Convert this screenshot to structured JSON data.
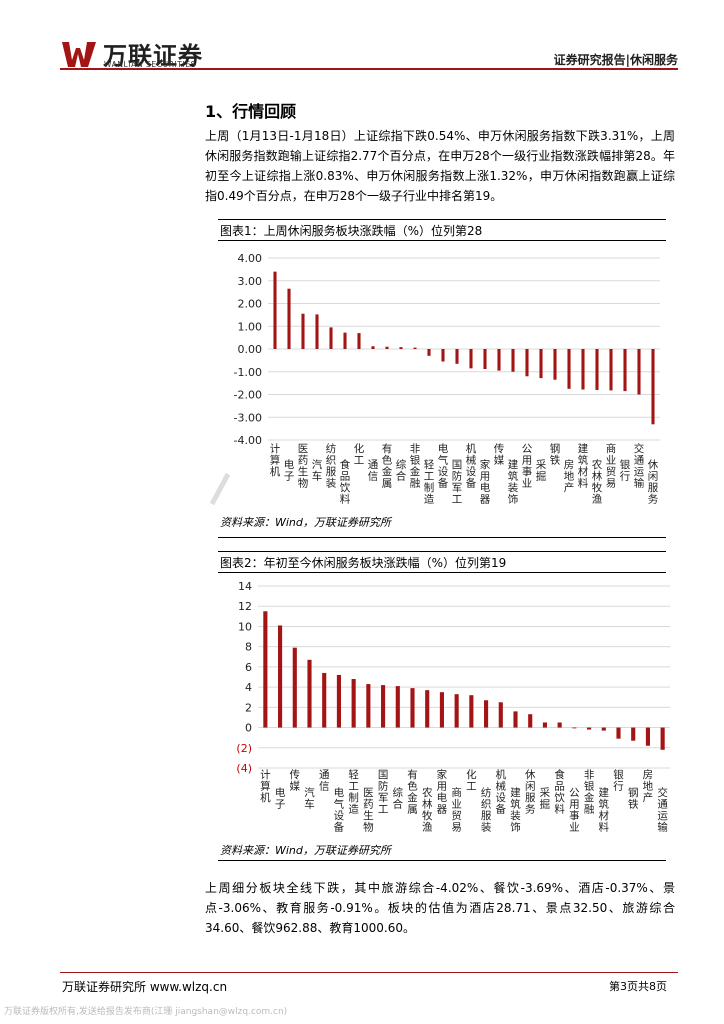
{
  "header": {
    "brand_cn": "万联证券",
    "brand_en": "WANLIAN SECURITIES",
    "tag": "证券研究报告|休闲服务",
    "logo_icon": "wanlian-w-logo-icon",
    "accent": "#a31515"
  },
  "section_title": "1、行情回顾",
  "paragraphs": [
    "上周（1月13日-1月18日）上证综指下跌0.54%、申万休闲服务指数下跌3.31%，上周休闲服务指数跑输上证综指2.77个百分点，在申万28个一级行业指数涨跌幅排第28。年初至今上证综指上涨0.83%、申万休闲服务指数上涨1.32%，申万休闲指数跑赢上证综指0.49个百分点，在申万28个一级子行业中排名第19。",
    "上周细分板块全线下跌，其中旅游综合-4.02%、餐饮-3.69%、酒店-0.37%、景点-3.06%、教育服务-0.91%。板块的估值为酒店28.71、景点32.50、旅游综合34.60、餐饮962.88、教育1000.60。"
  ],
  "figures": [
    {
      "title": "图表1：上周休闲服务板块涨跌幅（%）位列第28",
      "source": "资料来源：Wind，万联证券研究所"
    },
    {
      "title": "图表2：年初至今休闲服务板块涨跌幅（%）位列第19",
      "source": "资料来源：Wind，万联证券研究所"
    }
  ],
  "chart_data": [
    {
      "type": "bar",
      "color": "#a31515",
      "ylim": [
        -4,
        4
      ],
      "yticks": [
        4,
        3,
        2,
        1,
        0,
        -1,
        -2,
        -3,
        -4
      ],
      "ytick_labels": [
        "4.00",
        "3.00",
        "2.00",
        "1.00",
        "0.00",
        "-1.00",
        "-2.00",
        "-3.00",
        "-4.00"
      ],
      "grid": true,
      "categories": [
        "计算机",
        "电子",
        "医药生物",
        "汽车",
        "纺织服装",
        "食品饮料",
        "化工",
        "通信",
        "有色金属",
        "综合",
        "非银金融",
        "轻工制造",
        "电气设备",
        "国防军工",
        "机械设备",
        "家用电器",
        "传媒",
        "建筑装饰",
        "公用事业",
        "采掘",
        "钢铁",
        "房地产",
        "建筑材料",
        "农林牧渔",
        "商业贸易",
        "银行",
        "交通运输",
        "休闲服务"
      ],
      "values": [
        3.4,
        2.65,
        1.55,
        1.52,
        0.95,
        0.72,
        0.7,
        0.12,
        0.1,
        0.08,
        0.06,
        -0.3,
        -0.55,
        -0.65,
        -0.85,
        -0.88,
        -0.95,
        -1.0,
        -1.2,
        -1.28,
        -1.35,
        -1.75,
        -1.78,
        -1.8,
        -1.82,
        -1.85,
        -2.0,
        -3.31
      ]
    },
    {
      "type": "bar",
      "color": "#a31515",
      "ylim": [
        -4,
        14
      ],
      "yticks": [
        14,
        12,
        10,
        8,
        6,
        4,
        2,
        0,
        -2,
        -4
      ],
      "ytick_labels": [
        "14",
        "12",
        "10",
        "8",
        "6",
        "4",
        "2",
        "0",
        "(2)",
        "(4)"
      ],
      "negative_tick_color": "#cc0000",
      "grid": true,
      "categories": [
        "计算机",
        "电子",
        "传媒",
        "汽车",
        "通信",
        "电气设备",
        "轻工制造",
        "医药生物",
        "国防军工",
        "综合",
        "有色金属",
        "农林牧渔",
        "家用电器",
        "商业贸易",
        "化工",
        "纺织服装",
        "机械设备",
        "建筑装饰",
        "休闲服务",
        "采掘",
        "食品饮料",
        "公用事业",
        "非银金融",
        "建筑材料",
        "银行",
        "钢铁",
        "房地产",
        "交通运输"
      ],
      "values": [
        11.5,
        10.1,
        7.9,
        6.7,
        5.4,
        5.2,
        4.8,
        4.3,
        4.2,
        4.1,
        3.9,
        3.7,
        3.5,
        3.3,
        3.2,
        2.7,
        2.5,
        1.6,
        1.32,
        0.5,
        0.5,
        0.0,
        -0.2,
        -0.3,
        -1.1,
        -1.3,
        -1.8,
        -2.2
      ]
    }
  ],
  "footer": {
    "left": "万联证券研究所 www.wlzq.cn",
    "right": "第3页共8页"
  },
  "watermark": "万联证券版权所有,发送给报告发布商(江珊 jiangshan@wlzq.com.cn)"
}
